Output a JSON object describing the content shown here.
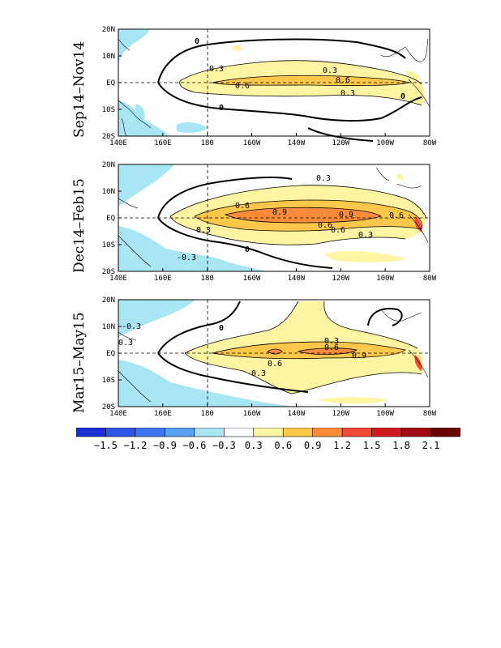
{
  "panels": [
    {
      "label": "Sep14–Nov14",
      "contour_labels": [
        "0",
        "0.3",
        "0.6",
        "0.3",
        "0.6",
        "0.3",
        "0",
        "0"
      ]
    },
    {
      "label": "Dec14–Feb15",
      "contour_labels": [
        "0.3",
        "0.6",
        "0.9",
        "0.6",
        "0.9",
        "0.6",
        "0.6",
        "0.3",
        "0.3",
        "-0.3",
        "0"
      ]
    },
    {
      "label": "Mar15–May15",
      "contour_labels": [
        "-0.3",
        "0.3",
        "0",
        "0.3",
        "0.6",
        "0.6",
        "0.9",
        "0.3"
      ]
    }
  ],
  "x_ticks": [
    "140E",
    "160E",
    "180",
    "160W",
    "140W",
    "120W",
    "100W",
    "80W"
  ],
  "y_ticks": [
    "20N",
    "10N",
    "EQ",
    "10S",
    "20S"
  ],
  "colorbar": {
    "colors": [
      "#1c2fd6",
      "#2e55e6",
      "#3f77ef",
      "#5aa0f5",
      "#a8e6f3",
      "#ffffff",
      "#fff5a3",
      "#ffc84a",
      "#fc8c3a",
      "#f24a37",
      "#d21820",
      "#a10912",
      "#6b0000"
    ],
    "tick_labels": [
      "−1.5",
      "−1.2",
      "−0.9",
      "−0.6",
      "−0.3",
      "0.3",
      "0.6",
      "0.9",
      "1.2",
      "1.5",
      "1.8",
      "2.1"
    ]
  }
}
